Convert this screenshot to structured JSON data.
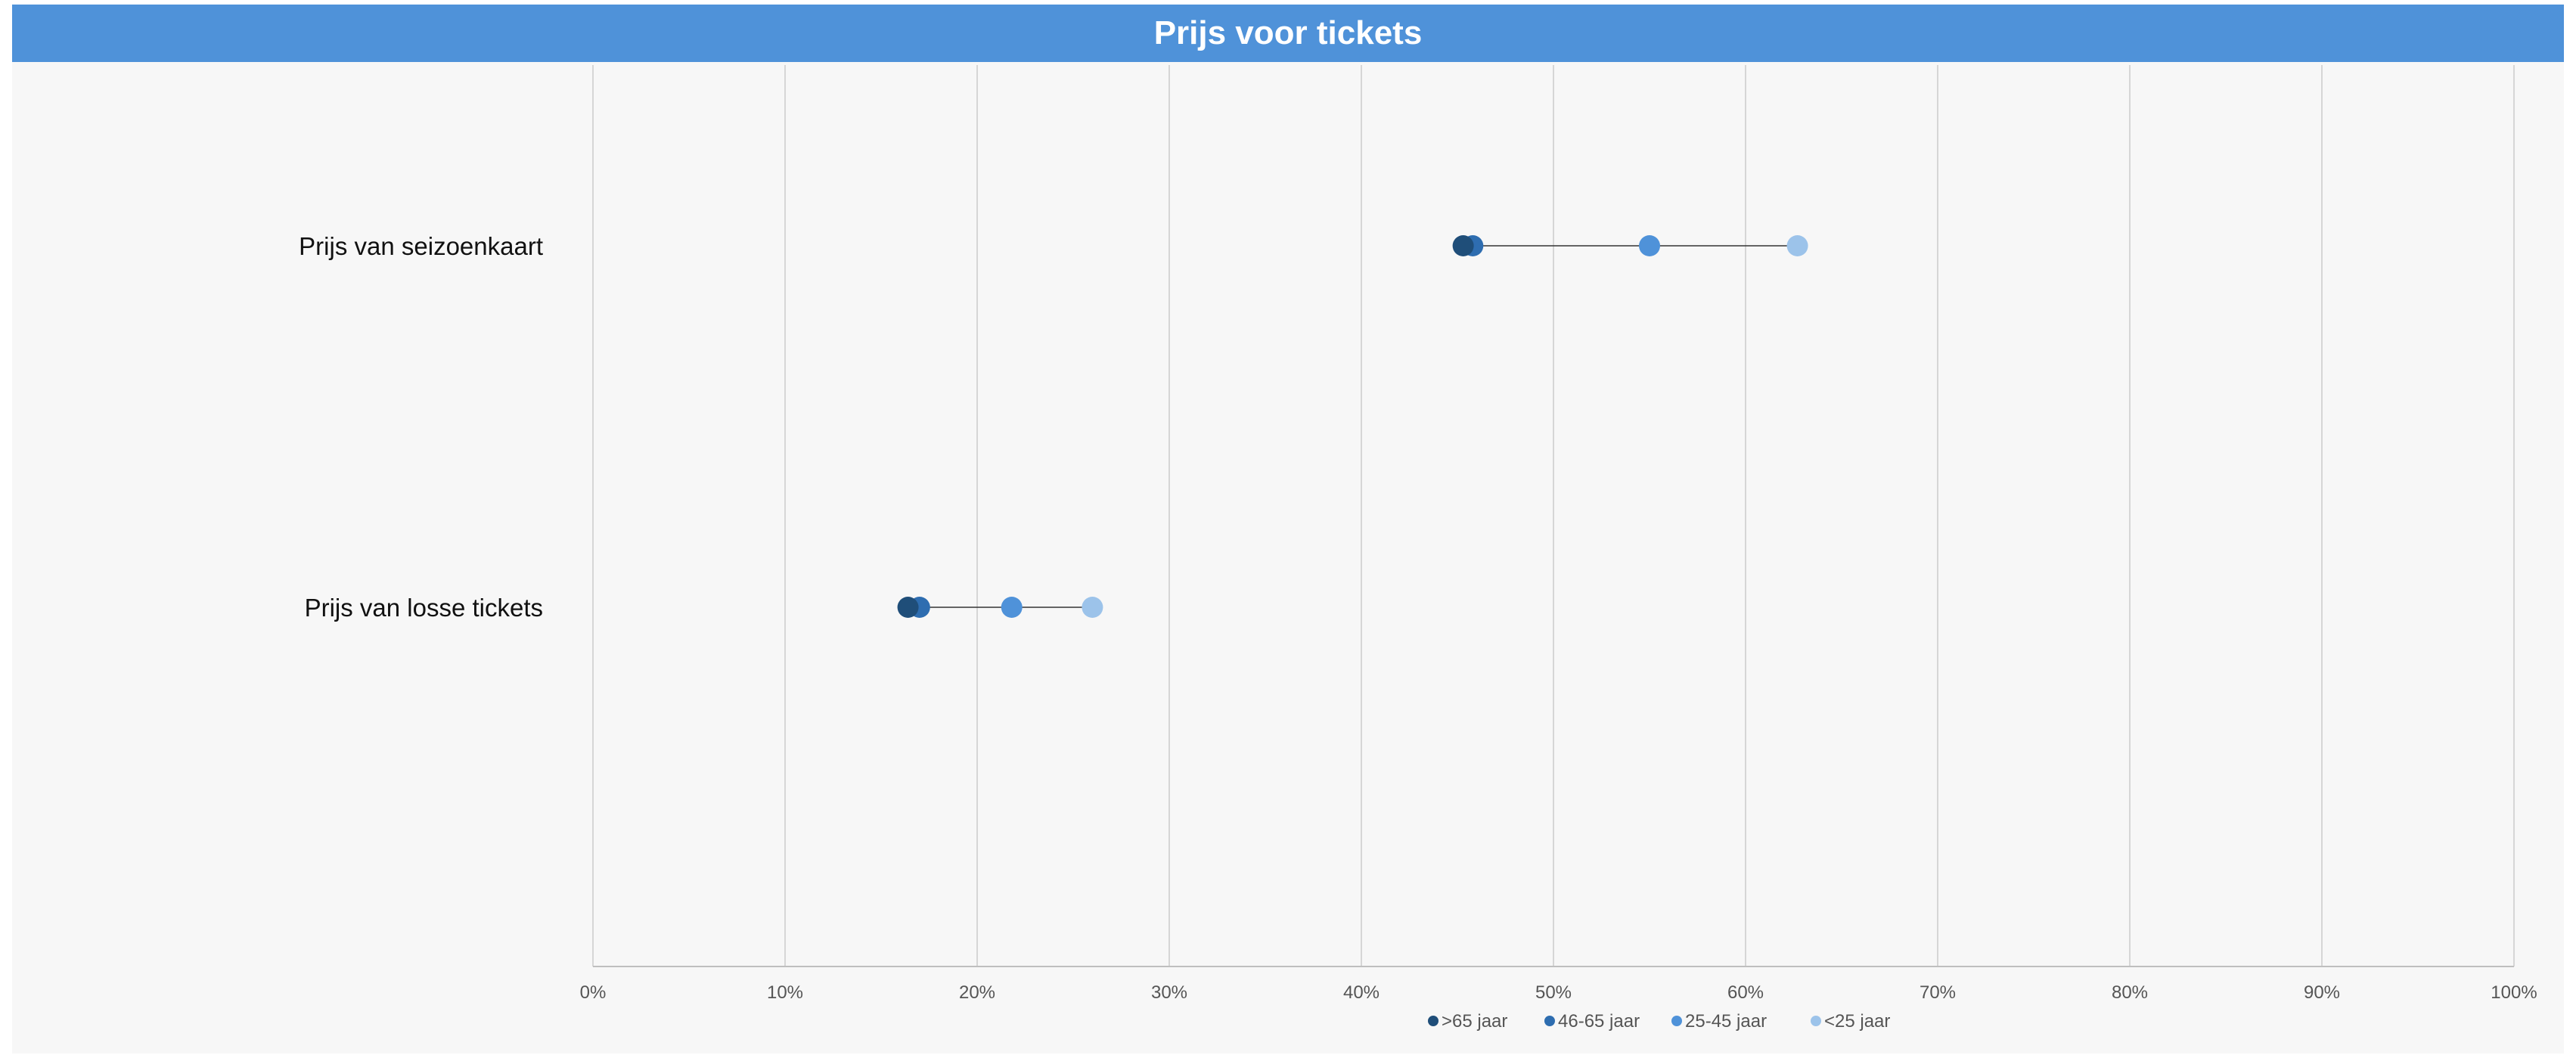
{
  "chart_data": {
    "type": "scatter",
    "title": "Prijs voor tickets",
    "categories": [
      "Prijs van seizoenkaart",
      "Prijs van losse tickets"
    ],
    "series": [
      {
        "name": ">65 jaar",
        "color": "#1f4e79",
        "values": [
          45.3,
          16.4
        ]
      },
      {
        "name": "46-65 jaar",
        "color": "#2e6db0",
        "values": [
          45.8,
          17.0
        ]
      },
      {
        "name": "25-45 jaar",
        "color": "#4f92d9",
        "values": [
          55.0,
          21.8
        ]
      },
      {
        "name": "<25 jaar",
        "color": "#9cc3ea",
        "values": [
          62.7,
          26.0
        ]
      }
    ],
    "xlim": [
      0,
      100
    ],
    "x_ticks": [
      "0%",
      "10%",
      "20%",
      "30%",
      "40%",
      "50%",
      "60%",
      "70%",
      "80%",
      "90%",
      "100%"
    ],
    "grid": true,
    "legend_position": "bottom"
  }
}
